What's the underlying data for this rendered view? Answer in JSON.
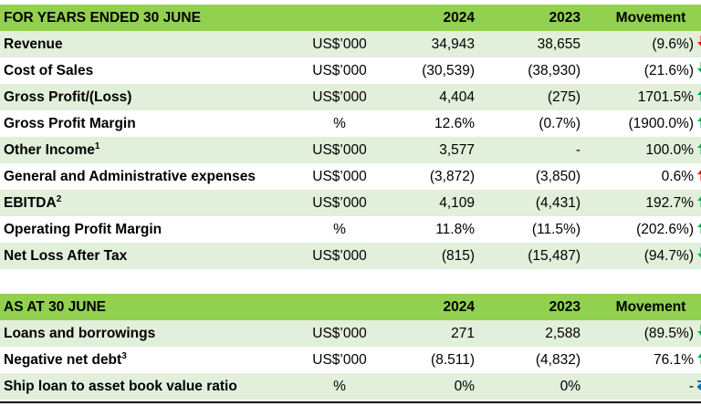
{
  "colors": {
    "header_green": "#92d050",
    "shade_green": "#e2efda",
    "arrow_green": "#00b050",
    "arrow_red": "#ff0000",
    "arrow_blue": "#0070c0"
  },
  "table1": {
    "header": {
      "label": "FOR YEARS ENDED 30 JUNE",
      "col2024": "2024",
      "col2023": "2023",
      "movement": "Movement"
    },
    "rows": [
      {
        "label": "Revenue",
        "sup": "",
        "unit": "US$’000",
        "v2024": "34,943",
        "v2023": "38,655",
        "movement": "(9.6%)",
        "arrow": "down-red"
      },
      {
        "label": "Cost of Sales",
        "sup": "",
        "unit": "US$’000",
        "v2024": "(30,539)",
        "v2023": "(38,930)",
        "movement": "(21.6%)",
        "arrow": "down-green"
      },
      {
        "label": "Gross Profit/(Loss)",
        "sup": "",
        "unit": "US$’000",
        "v2024": "4,404",
        "v2023": "(275)",
        "movement": "1701.5%",
        "arrow": "up-green"
      },
      {
        "label": "Gross Profit Margin",
        "sup": "",
        "unit": "%",
        "v2024": "12.6%",
        "v2023": "(0.7%)",
        "movement": "(1900.0%)",
        "arrow": "up-green"
      },
      {
        "label": "Other Income",
        "sup": "1",
        "unit": "US$’000",
        "v2024": "3,577",
        "v2023": "-",
        "movement": "100.0%",
        "arrow": "up-green"
      },
      {
        "label": "General and Administrative expenses",
        "sup": "",
        "unit": "US$’000",
        "v2024": "(3,872)",
        "v2023": "(3,850)",
        "movement": "0.6%",
        "arrow": "up-red"
      },
      {
        "label": "EBITDA",
        "sup": "2",
        "unit": "US$’000",
        "v2024": "4,109",
        "v2023": "(4,431)",
        "movement": "192.7%",
        "arrow": "up-green"
      },
      {
        "label": "Operating Profit Margin",
        "sup": "",
        "unit": "%",
        "v2024": "11.8%",
        "v2023": "(11.5%)",
        "movement": "(202.6%)",
        "arrow": "up-green"
      },
      {
        "label": "Net Loss After Tax",
        "sup": "",
        "unit": "US$’000",
        "v2024": "(815)",
        "v2023": "(15,487)",
        "movement": "(94.7%)",
        "arrow": "down-green"
      }
    ]
  },
  "table2": {
    "header": {
      "label": "AS AT 30 JUNE",
      "col2024": "2024",
      "col2023": "2023",
      "movement": "Movement"
    },
    "rows": [
      {
        "label": "Loans and borrowings",
        "sup": "",
        "unit": "US$’000",
        "v2024": "271",
        "v2023": "2,588",
        "movement": "(89.5%)",
        "arrow": "down-green"
      },
      {
        "label": "Negative net debt",
        "sup": "3",
        "unit": "US$’000",
        "v2024": "(8.511)",
        "v2023": "(4,832)",
        "movement": "76.1%",
        "arrow": "up-green"
      },
      {
        "label": "Ship loan to asset book value ratio",
        "sup": "",
        "unit": "%",
        "v2024": "0%",
        "v2023": "0%",
        "movement": "-",
        "arrow": "swap-blue"
      }
    ]
  }
}
